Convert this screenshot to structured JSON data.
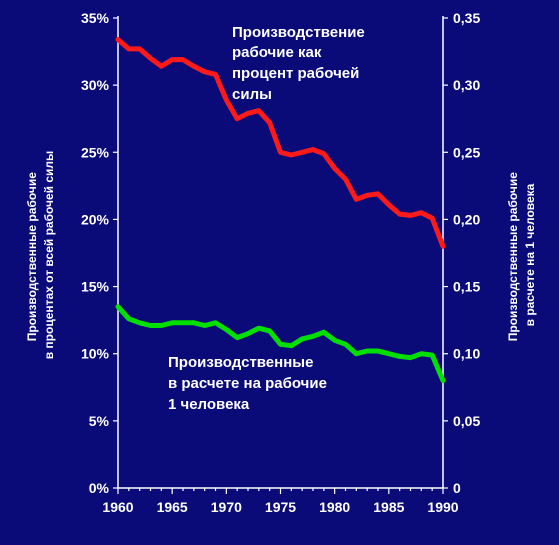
{
  "chart_data": {
    "type": "line",
    "title": "",
    "x": [
      1960,
      1961,
      1962,
      1963,
      1964,
      1965,
      1966,
      1967,
      1968,
      1969,
      1970,
      1971,
      1972,
      1973,
      1974,
      1975,
      1976,
      1977,
      1978,
      1979,
      1980,
      1981,
      1982,
      1983,
      1984,
      1985,
      1986,
      1987,
      1988,
      1989,
      1990
    ],
    "xticks": [
      "1960",
      "1965",
      "1970",
      "1975",
      "1980",
      "1985",
      "1990"
    ],
    "xlim": [
      1960,
      1990
    ],
    "y_left": {
      "label_lines": [
        "Производственные рабочие",
        "в процентах от всей рабочей силы"
      ],
      "ticks": [
        "0%",
        "5%",
        "10%",
        "15%",
        "20%",
        "25%",
        "30%",
        "35%"
      ],
      "ylim": [
        0,
        35
      ]
    },
    "y_right": {
      "label_lines": [
        "Производственные рабочие",
        "в расчете на 1 человека"
      ],
      "ticks": [
        "0",
        "0,05",
        "0,10",
        "0,15",
        "0,20",
        "0,25",
        "0,30",
        "0,35"
      ],
      "ylim": [
        0,
        0.35
      ]
    },
    "series": [
      {
        "name_lines": [
          "Производствение",
          "рабочие как",
          "процент рабочей",
          "силы"
        ],
        "axis": "left",
        "color": "#ff1a1a",
        "values": [
          33.4,
          32.7,
          32.7,
          32.0,
          31.4,
          31.9,
          31.9,
          31.4,
          31.0,
          30.8,
          28.9,
          27.5,
          27.9,
          28.1,
          27.2,
          25.0,
          24.8,
          25.0,
          25.2,
          24.9,
          23.8,
          23.0,
          21.5,
          21.8,
          21.9,
          21.1,
          20.4,
          20.3,
          20.5,
          20.1,
          18.0
        ]
      },
      {
        "name_lines": [
          "Производственные",
          "в расчете на рабочие",
          "1 человека"
        ],
        "axis": "right",
        "color": "#00e000",
        "values": [
          0.135,
          0.126,
          0.123,
          0.121,
          0.121,
          0.123,
          0.123,
          0.123,
          0.121,
          0.123,
          0.118,
          0.112,
          0.115,
          0.119,
          0.117,
          0.107,
          0.106,
          0.111,
          0.113,
          0.116,
          0.11,
          0.107,
          0.1,
          0.102,
          0.102,
          0.1,
          0.098,
          0.097,
          0.1,
          0.099,
          0.08
        ]
      }
    ]
  }
}
